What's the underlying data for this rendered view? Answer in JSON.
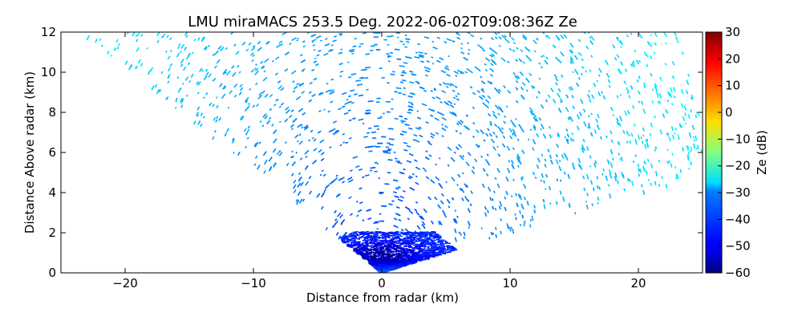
{
  "chart_data": {
    "type": "heatmap",
    "title": "LMU miraMACS 253.5 Deg. 2022-06-02T09:08:36Z  Ze",
    "xlabel": "Distance from radar (km)",
    "ylabel": "Distance Above radar  (km)",
    "xlim": [
      -25,
      25
    ],
    "ylim": [
      0,
      12
    ],
    "x_ticks": [
      -20,
      -10,
      0,
      10,
      20
    ],
    "x_tick_labels": [
      "−20",
      "−10",
      "0",
      "10",
      "20"
    ],
    "y_ticks": [
      0,
      2,
      4,
      6,
      8,
      10,
      12
    ],
    "y_tick_labels": [
      "0",
      "2",
      "4",
      "6",
      "8",
      "10",
      "12"
    ],
    "colorbar": {
      "label": "Ze (dB)",
      "range": [
        -60,
        30
      ],
      "ticks": [
        -60,
        -50,
        -40,
        -30,
        -20,
        -10,
        0,
        10,
        20,
        30
      ],
      "tick_labels": [
        "−60",
        "−50",
        "−40",
        "−30",
        "−20",
        "−10",
        "0",
        "10",
        "20",
        "30"
      ],
      "colormap": "jet"
    },
    "scan": {
      "azimuth_deg": 253.5,
      "timestamp": "2022-06-02T09:08:36Z",
      "sector_left_edge_elevation_deg": 27,
      "sector_right_edge_elevation_deg": 11,
      "noise_floor_dB_near": -46,
      "noise_floor_dB_far": -28,
      "strong_echo_layer_km": [
        0,
        2
      ],
      "strong_echo_dB": -45
    },
    "grid": false,
    "legend": "none"
  }
}
